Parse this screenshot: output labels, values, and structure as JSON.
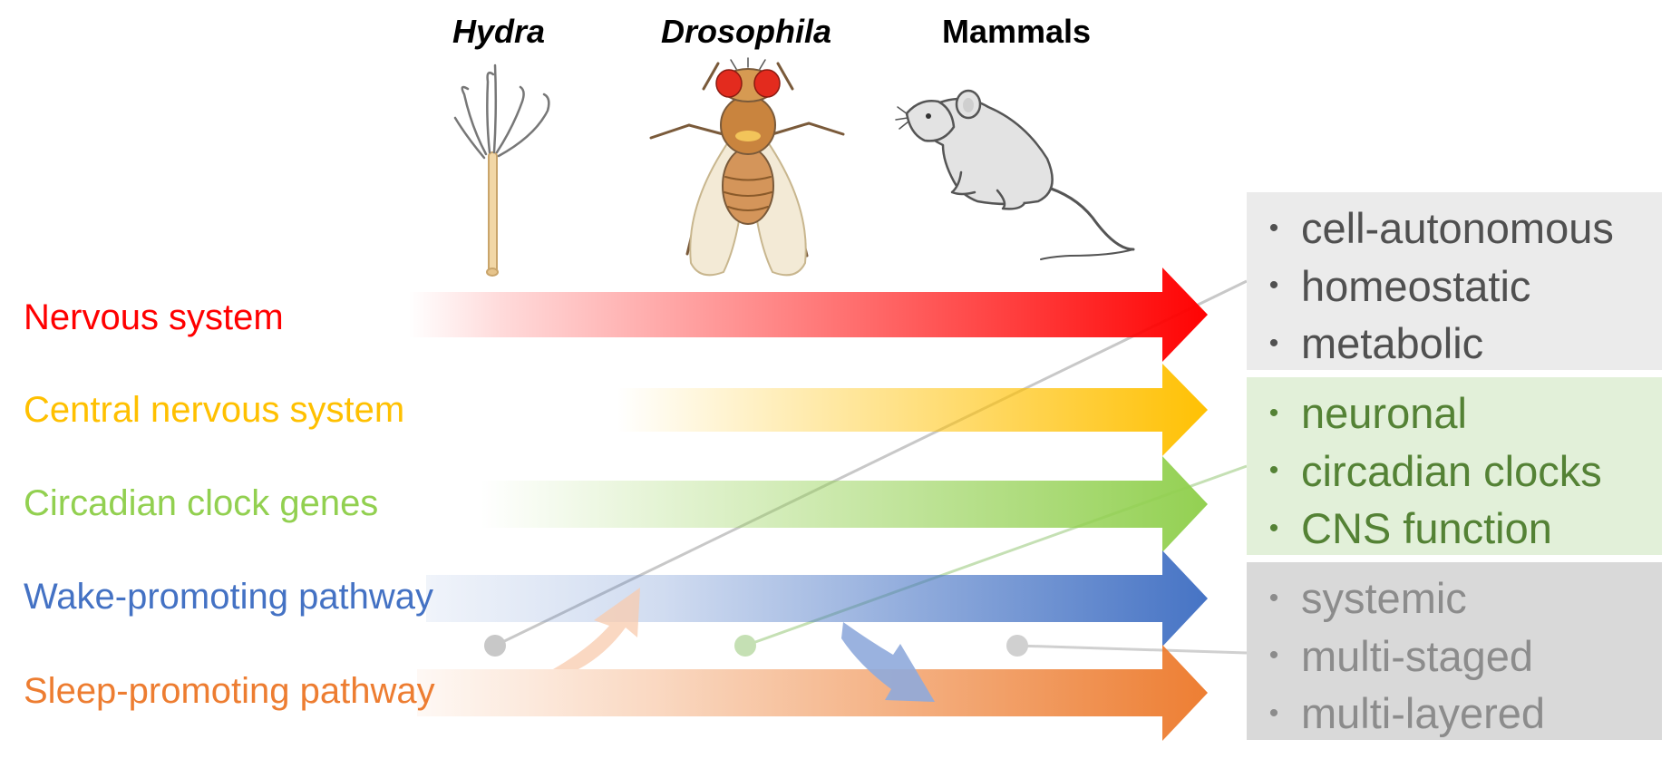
{
  "organisms": [
    {
      "name": "Hydra",
      "italic": true
    },
    {
      "name": "Drosophila",
      "italic": true
    },
    {
      "name": "Mammals",
      "italic": false
    }
  ],
  "rows": [
    {
      "label": "Nervous system",
      "color": "#ff0000"
    },
    {
      "label": "Central nervous system",
      "color": "#ffc000"
    },
    {
      "label": "Circadian clock genes",
      "color": "#92d050"
    },
    {
      "label": "Wake-promoting pathway",
      "color": "#4472c4"
    },
    {
      "label": "Sleep-promoting pathway",
      "color": "#ed7d31"
    }
  ],
  "boxes": [
    {
      "items": [
        "cell-autonomous",
        "homeostatic",
        "metabolic"
      ],
      "background": "#ebebeb",
      "text_color": "#505050"
    },
    {
      "items": [
        "neuronal",
        "circadian clocks",
        "CNS function"
      ],
      "background": "#e2f0d9",
      "text_color": "#548235"
    },
    {
      "items": [
        "systemic",
        "multi-staged",
        "multi-layered"
      ],
      "background": "#d9d9d9",
      "text_color": "#8c8c8c"
    }
  ],
  "icons": [
    "hydra-icon",
    "fruit-fly-icon",
    "mouse-icon"
  ]
}
